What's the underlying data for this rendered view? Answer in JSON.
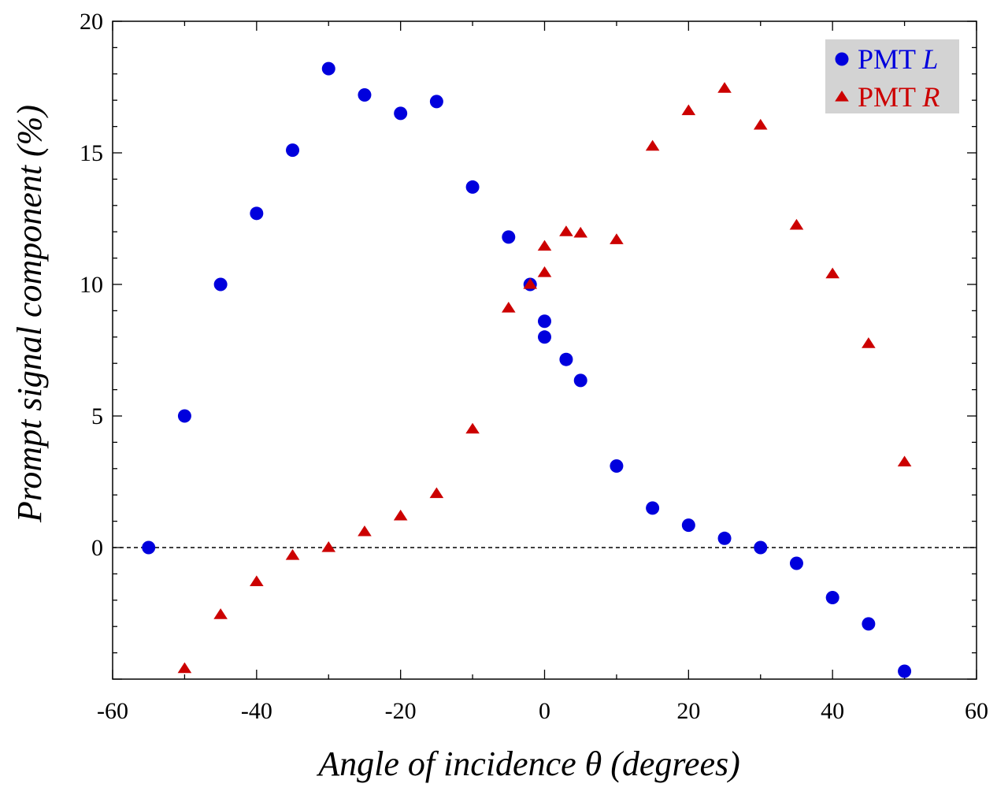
{
  "chart_data": {
    "type": "scatter",
    "title": "",
    "xlabel": "Angle of incidence θ (degrees)",
    "ylabel": "Prompt signal component (%)",
    "xlim": [
      -60,
      60
    ],
    "ylim": [
      -5,
      20
    ],
    "x_ticks": [
      "-60",
      "-40",
      "-20",
      "0",
      "20",
      "40",
      "60"
    ],
    "y_ticks": [
      "0",
      "5",
      "10",
      "15",
      "20"
    ],
    "y_tick_values": [
      0,
      5,
      10,
      15,
      20
    ],
    "x_tick_values": [
      -60,
      -40,
      -20,
      0,
      20,
      40,
      60
    ],
    "reference_line": {
      "y": 0,
      "style": "dashed"
    },
    "grid": false,
    "legend_position": "top-right",
    "series": [
      {
        "name": "PMT L",
        "name_prefix": "PMT ",
        "name_italic": "L",
        "marker": "circle",
        "color": "#0000dd",
        "points": [
          [
            -55,
            0
          ],
          [
            -50,
            5.0
          ],
          [
            -45,
            10.0
          ],
          [
            -40,
            12.7
          ],
          [
            -35,
            15.1
          ],
          [
            -30,
            18.2
          ],
          [
            -25,
            17.2
          ],
          [
            -20,
            16.5
          ],
          [
            -15,
            16.95
          ],
          [
            -10,
            13.7
          ],
          [
            -5,
            11.8
          ],
          [
            -2,
            10.0
          ],
          [
            0,
            8.6
          ],
          [
            0,
            8.0
          ],
          [
            3,
            7.15
          ],
          [
            5,
            6.35
          ],
          [
            10,
            3.1
          ],
          [
            15,
            1.5
          ],
          [
            20,
            0.85
          ],
          [
            25,
            0.35
          ],
          [
            30,
            0.0
          ],
          [
            35,
            -0.6
          ],
          [
            40,
            -1.9
          ],
          [
            45,
            -2.9
          ],
          [
            50,
            -4.7
          ]
        ]
      },
      {
        "name": "PMT R",
        "name_prefix": "PMT ",
        "name_italic": "R",
        "marker": "triangle",
        "color": "#cc0000",
        "points": [
          [
            -50,
            -4.6
          ],
          [
            -45,
            -2.55
          ],
          [
            -40,
            -1.3
          ],
          [
            -35,
            -0.3
          ],
          [
            -30,
            0.0
          ],
          [
            -25,
            0.6
          ],
          [
            -20,
            1.2
          ],
          [
            -15,
            2.05
          ],
          [
            -10,
            4.5
          ],
          [
            -5,
            9.1
          ],
          [
            -2,
            10.0
          ],
          [
            0,
            10.45
          ],
          [
            0,
            11.45
          ],
          [
            3,
            12.0
          ],
          [
            5,
            11.95
          ],
          [
            10,
            11.7
          ],
          [
            15,
            15.25
          ],
          [
            20,
            16.6
          ],
          [
            25,
            17.45
          ],
          [
            30,
            16.05
          ],
          [
            35,
            12.25
          ],
          [
            40,
            10.4
          ],
          [
            45,
            7.75
          ],
          [
            50,
            3.25
          ]
        ]
      }
    ]
  }
}
